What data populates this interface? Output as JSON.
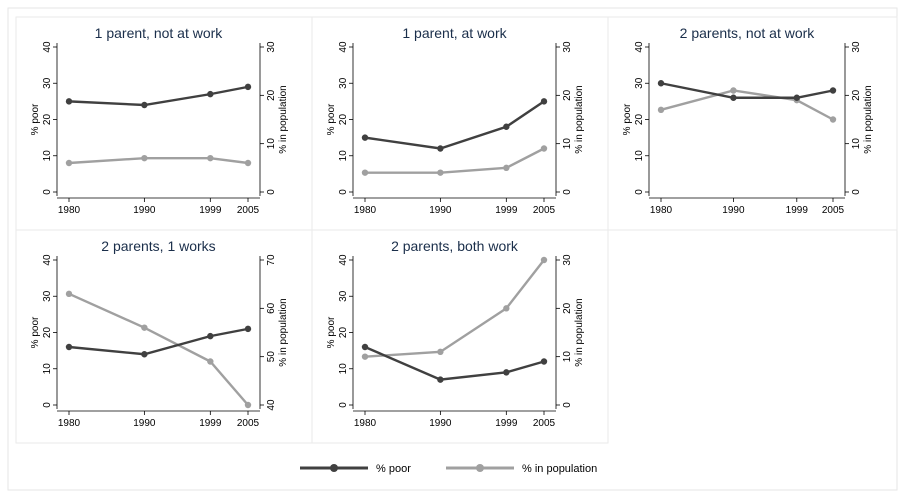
{
  "chart_data": {
    "type": "line",
    "x": [
      "1980",
      "1990",
      "1999",
      "2005"
    ],
    "left_axis_label": "% poor",
    "right_axis_label": "% in population",
    "colors": {
      "poor": "#404040",
      "population": "#a0a0a0"
    },
    "legend": {
      "position": "bottom",
      "items": [
        "% poor",
        "% in population"
      ]
    },
    "panels": [
      {
        "title": "1 parent, not at work",
        "left": {
          "ylim": [
            0,
            40
          ],
          "ticks": [
            "0",
            "10",
            "20",
            "30",
            "40"
          ]
        },
        "right": {
          "ylim": [
            0,
            30
          ],
          "ticks": [
            "0",
            "10",
            "20",
            "30"
          ]
        },
        "series": [
          {
            "name": "% poor",
            "axis": "left",
            "values": [
              25,
              24,
              27,
              29
            ]
          },
          {
            "name": "% in population",
            "axis": "right",
            "values": [
              6,
              7,
              7,
              6
            ]
          }
        ]
      },
      {
        "title": "1 parent, at work",
        "left": {
          "ylim": [
            0,
            40
          ],
          "ticks": [
            "0",
            "10",
            "20",
            "30",
            "40"
          ]
        },
        "right": {
          "ylim": [
            0,
            30
          ],
          "ticks": [
            "0",
            "10",
            "20",
            "30"
          ]
        },
        "series": [
          {
            "name": "% poor",
            "axis": "left",
            "values": [
              15,
              12,
              18,
              25
            ]
          },
          {
            "name": "% in population",
            "axis": "right",
            "values": [
              4,
              4,
              5,
              9
            ]
          }
        ]
      },
      {
        "title": "2 parents, not at work",
        "left": {
          "ylim": [
            0,
            40
          ],
          "ticks": [
            "0",
            "10",
            "20",
            "30",
            "40"
          ]
        },
        "right": {
          "ylim": [
            0,
            30
          ],
          "ticks": [
            "0",
            "10",
            "20",
            "30"
          ]
        },
        "series": [
          {
            "name": "% poor",
            "axis": "left",
            "values": [
              30,
              26,
              26,
              28
            ]
          },
          {
            "name": "% in population",
            "axis": "right",
            "values": [
              17,
              21,
              19,
              15
            ]
          }
        ]
      },
      {
        "title": "2 parents, 1 works",
        "left": {
          "ylim": [
            0,
            40
          ],
          "ticks": [
            "0",
            "10",
            "20",
            "30",
            "40"
          ]
        },
        "right": {
          "ylim": [
            40,
            70
          ],
          "ticks": [
            "40",
            "50",
            "60",
            "70"
          ]
        },
        "series": [
          {
            "name": "% poor",
            "axis": "left",
            "values": [
              16,
              14,
              19,
              21
            ]
          },
          {
            "name": "% in population",
            "axis": "right",
            "values": [
              63,
              56,
              49,
              40
            ]
          }
        ]
      },
      {
        "title": "2 parents, both work",
        "left": {
          "ylim": [
            0,
            40
          ],
          "ticks": [
            "0",
            "10",
            "20",
            "30",
            "40"
          ]
        },
        "right": {
          "ylim": [
            0,
            30
          ],
          "ticks": [
            "0",
            "10",
            "20",
            "30"
          ]
        },
        "series": [
          {
            "name": "% poor",
            "axis": "left",
            "values": [
              16,
              7,
              9,
              12
            ]
          },
          {
            "name": "% in population",
            "axis": "right",
            "values": [
              10,
              11,
              20,
              30
            ]
          }
        ]
      }
    ]
  }
}
